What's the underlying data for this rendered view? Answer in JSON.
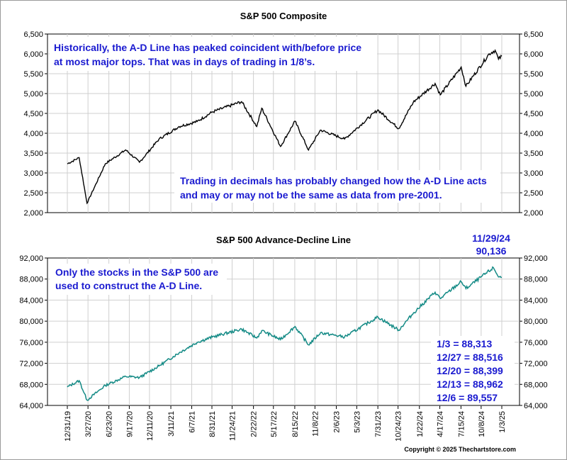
{
  "copyright": "Copyright © 2025 Thechartstore.com",
  "colors": {
    "sp500_line": "#000000",
    "ad_line": "#138a85",
    "annotation": "#1a1ad0",
    "grid": "#cfcfcf"
  },
  "x_dates": [
    "12/31/19",
    "3/27/20",
    "6/23/20",
    "9/17/20",
    "12/11/20",
    "3/11/21",
    "6/7/21",
    "8/31/21",
    "11/24/21",
    "2/22/22",
    "5/17/22",
    "8/15/22",
    "11/8/22",
    "2/6/23",
    "5/3/23",
    "7/31/23",
    "10/24/23",
    "1/22/24",
    "4/17/24",
    "7/15/24",
    "10/8/24",
    "1/3/25"
  ],
  "annotations": {
    "top_note_1": "Historically, the A-D Line has peaked coincident with/before price",
    "top_note_2": "at most major tops.  That was in days of trading in 1/8’s.",
    "mid_note_1": "Trading in decimals has probably changed how the A-D Line acts",
    "mid_note_2": "and may or may not be the same as data from pre-2001.",
    "peak_date": "11/29/24",
    "peak_value": "90,136",
    "bottom_note_1": "Only the stocks in the S&P 500 are",
    "bottom_note_2": "used to construct the A-D Line.",
    "recent_values": [
      "1/3 = 88,313",
      "12/27 = 88,516",
      "12/20 = 88,399",
      "12/13 = 88,962",
      "12/6 = 89,557"
    ]
  },
  "chart_data": [
    {
      "type": "line",
      "title": "S&P 500 Composite",
      "ylim": [
        2000,
        6500
      ],
      "yticks": [
        "2,000",
        "2,500",
        "3,000",
        "3,500",
        "4,000",
        "4,500",
        "5,000",
        "5,500",
        "6,000",
        "6,500"
      ],
      "grid": true,
      "series": [
        {
          "x": [
            "12/31/19",
            "2/19/20",
            "3/23/20",
            "6/8/20",
            "9/2/20",
            "10/30/20",
            "1/20/21",
            "4/15/21",
            "6/30/21",
            "9/2/21",
            "1/3/22",
            "3/8/22",
            "3/29/22",
            "6/16/22",
            "8/16/22",
            "10/12/22",
            "12/1/22",
            "3/13/23",
            "7/31/23",
            "10/27/23",
            "12/27/23",
            "3/28/24",
            "4/19/24",
            "7/16/24",
            "8/5/24",
            "11/11/24",
            "12/6/24",
            "12/20/24",
            "1/3/25"
          ],
          "y": [
            3230,
            3386,
            2237,
            3232,
            3580,
            3270,
            3851,
            4170,
            4297,
            4537,
            4796,
            4170,
            4631,
            3667,
            4305,
            3577,
            4080,
            3856,
            4589,
            4117,
            4781,
            5254,
            4967,
            5667,
            5186,
            6001,
            6090,
            5867,
            5942
          ]
        }
      ]
    },
    {
      "type": "line",
      "title": "S&P 500 Advance-Decline Line",
      "ylim": [
        64000,
        92000
      ],
      "yticks": [
        "64,000",
        "68,000",
        "72,000",
        "76,000",
        "80,000",
        "84,000",
        "88,000",
        "92,000"
      ],
      "grid": true,
      "series": [
        {
          "x": [
            "12/31/19",
            "2/19/20",
            "3/23/20",
            "6/8/20",
            "9/2/20",
            "10/30/20",
            "1/20/21",
            "4/15/21",
            "6/30/21",
            "9/2/21",
            "1/3/22",
            "3/8/22",
            "3/29/22",
            "6/16/22",
            "8/16/22",
            "10/12/22",
            "12/1/22",
            "3/13/23",
            "7/31/23",
            "10/27/23",
            "12/27/23",
            "3/28/24",
            "4/19/24",
            "7/16/24",
            "8/5/24",
            "11/29/24",
            "12/6/24",
            "12/13/24",
            "12/20/24",
            "12/27/24",
            "1/3/25"
          ],
          "y": [
            67500,
            68700,
            65000,
            67800,
            69500,
            69300,
            71500,
            74000,
            76000,
            77000,
            78500,
            76800,
            78200,
            76500,
            79000,
            75500,
            77800,
            77000,
            80800,
            78300,
            81500,
            85500,
            84300,
            87500,
            86200,
            90136,
            89557,
            88962,
            88399,
            88516,
            88313
          ]
        }
      ]
    }
  ]
}
